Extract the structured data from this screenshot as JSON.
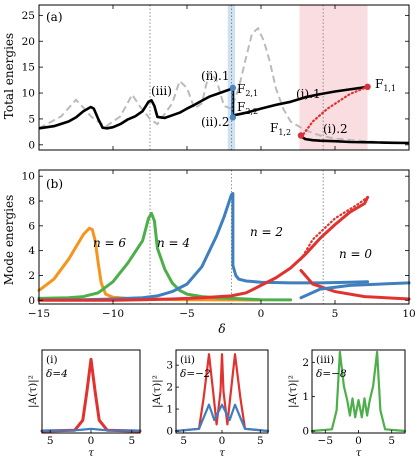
{
  "panel_a": {
    "tag": "(a)",
    "ylabel": "Total energies",
    "yticks": [
      "0",
      "5",
      "10",
      "15",
      "20",
      "25"
    ],
    "branch_labels": [
      {
        "id": "iii",
        "text": "(iii)"
      },
      {
        "id": "ii1",
        "text": "(ii).1"
      },
      {
        "id": "ii2",
        "text": "(ii).2"
      },
      {
        "id": "i1",
        "text": "(i).1"
      },
      {
        "id": "i2",
        "text": "(i).2"
      }
    ],
    "point_labels": [
      {
        "id": "F21",
        "text": "F",
        "sub": "2,1",
        "color": "#4a86c0"
      },
      {
        "id": "F22",
        "text": "F",
        "sub": "2,2",
        "color": "#4a86c0"
      },
      {
        "id": "F11",
        "text": "F",
        "sub": "1,1",
        "color": "#d6323c"
      },
      {
        "id": "F12",
        "text": "F",
        "sub": "1,2",
        "color": "#d6323c"
      }
    ]
  },
  "panel_b": {
    "tag": "(b)",
    "ylabel": "Mode energies",
    "yticks": [
      "0",
      "2",
      "4",
      "6",
      "8",
      "10"
    ],
    "mode_labels": [
      {
        "id": "n6",
        "text": "n = 6"
      },
      {
        "id": "n4",
        "text": "n = 4"
      },
      {
        "id": "n2",
        "text": "n = 2"
      },
      {
        "id": "n0",
        "text": "n = 0"
      }
    ]
  },
  "shared_x": {
    "xlabel": "δ",
    "xticks": [
      "−15",
      "−10",
      "−5",
      "0",
      "5",
      "10"
    ]
  },
  "insets": [
    {
      "tag": "(i)",
      "param": "δ=4",
      "ylabel": "|A(τ)|²",
      "xlabel": "τ",
      "xticks": [
        "5",
        "0",
        "5"
      ],
      "yticks": []
    },
    {
      "tag": "(ii)",
      "param": "δ=−2",
      "ylabel": "|A(τ)|²",
      "xlabel": "τ",
      "xticks": [
        "5",
        "0",
        "5"
      ],
      "yticks": [
        "0",
        "1",
        "2",
        "3"
      ]
    },
    {
      "tag": "(iii)",
      "param": "δ=−8",
      "ylabel": "|A(τ)|²",
      "xlabel": "τ",
      "xticks": [
        "−5",
        "0",
        "5"
      ],
      "yticks": [
        "0",
        "1",
        "2"
      ]
    }
  ],
  "colors": {
    "orange": "#f7941d",
    "green": "#4daf4a",
    "blue": "#3f7fbf",
    "red": "#e0322f",
    "gray": "#bbbbbb",
    "black": "#000000",
    "shade": "#f9dde0",
    "blue_band": "#bcd6ec"
  },
  "chart_data": [
    {
      "type": "line",
      "panel": "a",
      "ylabel": "Total energies",
      "xlim": [
        -15,
        10
      ],
      "ylim": [
        -1,
        27
      ],
      "shaded_interval_delta": [
        2.6,
        7.2
      ],
      "vertical_lines_delta": [
        -7.5,
        -2,
        4.2
      ],
      "series": [
        {
          "style": "dashed-gray",
          "x": [
            -15,
            -13.5,
            -12.5,
            -12,
            -11.5,
            -10.5,
            -9.5,
            -8.7,
            -8.2,
            -7.5,
            -7,
            -6,
            -5.5,
            -5,
            -4.5,
            -4,
            -3.5,
            -3,
            -2.5,
            -2,
            -1.5,
            -1,
            -0.6,
            -0.2,
            0.2,
            0.6,
            1,
            1.5,
            2,
            3,
            4,
            5,
            7,
            8,
            10
          ],
          "y": [
            3.2,
            5.5,
            8.7,
            7.2,
            5.5,
            3.5,
            5.5,
            9.7,
            7.5,
            5,
            4,
            8,
            12.3,
            11,
            7,
            8,
            14,
            12.5,
            7.5,
            7,
            11,
            17,
            21.5,
            22.5,
            20,
            16,
            11,
            7,
            4.5,
            2.8,
            1.8,
            1.2,
            0.7,
            0.5,
            0.4
          ]
        },
        {
          "style": "solid-black",
          "x": [
            -15,
            -14,
            -13,
            -12.5,
            -12,
            -11.5,
            -11.3,
            -11,
            -10.7,
            -10.4,
            -10,
            -9.5,
            -9,
            -8.5,
            -8,
            -7.6,
            -7.4,
            -7.2,
            -7,
            -6.5,
            -6,
            -5.5,
            -5,
            -4.5,
            -4,
            -3.5,
            -3,
            -2.5,
            -2,
            -1.9,
            -1.9,
            -1.7,
            -1.5,
            -1,
            0,
            1,
            2,
            3,
            4,
            5,
            6,
            7,
            7.2
          ],
          "y": [
            3.2,
            3.6,
            4.5,
            5.3,
            6.5,
            7.3,
            7,
            5,
            3.3,
            3.2,
            3.4,
            4,
            4.9,
            5.5,
            6.5,
            8.3,
            8.6,
            7.5,
            5.4,
            5.2,
            5.7,
            6.2,
            7,
            7.7,
            8.5,
            9.3,
            9.8,
            10.3,
            10.8,
            11,
            5.5,
            5.8,
            5.9,
            6.2,
            7,
            7.7,
            8.3,
            9.2,
            9.8,
            10.3,
            10.7,
            11.1,
            11.2
          ]
        },
        {
          "style": "dotted-black",
          "x": [
            7.2,
            6,
            4.5,
            3.5,
            2.8
          ],
          "y": [
            11.2,
            9.8,
            7,
            4.5,
            1.8
          ]
        },
        {
          "style": "solid-black",
          "x": [
            2.7,
            3,
            3.5,
            4,
            5,
            6,
            7,
            8,
            9,
            10
          ],
          "y": [
            1.6,
            1.1,
            0.9,
            0.8,
            0.7,
            0.55,
            0.5,
            0.45,
            0.4,
            0.35
          ]
        },
        {
          "style": "dotted-black",
          "x": [
            -1.95,
            -1.95,
            -1.95
          ],
          "y": [
            5.3,
            7,
            10.9
          ]
        }
      ],
      "points": [
        {
          "label": "F2,1",
          "x": -1.9,
          "y": 11.0,
          "color": "#4a86c0"
        },
        {
          "label": "F2,2",
          "x": -1.9,
          "y": 5.3,
          "color": "#4a86c0"
        },
        {
          "label": "F1,1",
          "x": 7.2,
          "y": 11.2,
          "color": "#d6323c"
        },
        {
          "label": "F1,2",
          "x": 2.7,
          "y": 1.8,
          "color": "#d6323c"
        }
      ]
    },
    {
      "type": "line",
      "panel": "b",
      "ylabel": "Mode energies",
      "xlim": [
        -15,
        10
      ],
      "ylim": [
        -0.3,
        10.5
      ],
      "series": [
        {
          "name": "n = 6",
          "color": "#f7941d",
          "x": [
            -15,
            -14,
            -13,
            -12.5,
            -12,
            -11.6,
            -11.4,
            -11.2,
            -11,
            -10.8,
            -10.5,
            -10,
            -9,
            -8,
            -7,
            -5,
            -2,
            0
          ],
          "y": [
            0.8,
            1.7,
            3.3,
            4.3,
            5.3,
            5.8,
            5.7,
            4.8,
            3,
            1.4,
            0.5,
            0.25,
            0.15,
            0.1,
            0.08,
            0.05,
            0.03,
            0.02
          ]
        },
        {
          "name": "n = 4",
          "color": "#4daf4a",
          "x": [
            -15,
            -13,
            -12,
            -11,
            -10,
            -9,
            -8,
            -7.6,
            -7.4,
            -7.2,
            -7,
            -6.5,
            -6,
            -5.5,
            -5,
            -4,
            -3,
            -2,
            0,
            2
          ],
          "y": [
            0.15,
            0.2,
            0.3,
            0.6,
            1.5,
            3,
            4.8,
            6.6,
            7,
            6.4,
            4.2,
            2.5,
            1.4,
            0.8,
            0.5,
            0.3,
            0.2,
            0.15,
            0.05,
            0.03
          ]
        },
        {
          "name": "n = 2",
          "color": "#3f7fbf",
          "x": [
            -15,
            -12,
            -10,
            -8,
            -7,
            -6,
            -5,
            -4,
            -3,
            -2.5,
            -2,
            -1.9,
            -1.9,
            -1.7,
            -1.5,
            -1,
            0,
            2,
            4,
            6,
            7.2
          ],
          "y": [
            0.02,
            0.05,
            0.1,
            0.2,
            0.35,
            0.7,
            1.3,
            2.7,
            5.2,
            6.7,
            8.5,
            8.6,
            2.8,
            2,
            1.7,
            1.55,
            1.45,
            1.4,
            1.4,
            1.45,
            1.5
          ]
        },
        {
          "name": "n = 0",
          "color": "#e0322f",
          "x": [
            -15,
            -10,
            -8,
            -6,
            -4,
            -2,
            -1,
            0,
            1,
            2,
            3,
            4,
            5,
            6,
            7,
            7.2
          ],
          "y": [
            0,
            0,
            0.05,
            0.1,
            0.2,
            0.35,
            0.6,
            1.2,
            1.8,
            2.6,
            3.7,
            5,
            6.1,
            7.1,
            7.8,
            8.3
          ]
        }
      ]
    },
    {
      "type": "line",
      "panel": "inset-i",
      "param": "δ=4",
      "xlim": [
        -6,
        6
      ],
      "series": [
        {
          "color": "#e0322f",
          "x": [
            -6,
            -2,
            -1,
            -0.5,
            0,
            0.5,
            1,
            2,
            6
          ],
          "y": [
            0,
            0.1,
            1.5,
            5.5,
            10,
            5.5,
            1.5,
            0.1,
            0
          ]
        },
        {
          "color": "#3f7fbf",
          "x": [
            -6,
            -2,
            -1,
            0,
            1,
            2,
            6
          ],
          "y": [
            0.05,
            0.1,
            0.2,
            0.3,
            0.2,
            0.1,
            0.05
          ]
        }
      ]
    },
    {
      "type": "line",
      "panel": "inset-ii",
      "param": "δ=−2",
      "xlim": [
        -6,
        6
      ],
      "ylim": [
        0,
        3.6
      ],
      "series": [
        {
          "color": "#e0322f",
          "x": [
            -6,
            -3,
            -2.4,
            -1.7,
            -1.1,
            -0.7,
            -0.2,
            0,
            0.2,
            0.7,
            1.1,
            1.7,
            2.4,
            3,
            6
          ],
          "y": [
            0,
            0.1,
            1.5,
            3.5,
            1.6,
            0.3,
            1.8,
            3.5,
            1.8,
            0.3,
            1.6,
            3.5,
            1.5,
            0.1,
            0
          ]
        },
        {
          "color": "#3f7fbf",
          "x": [
            -6,
            -3,
            -1.7,
            -1,
            0,
            1,
            1.7,
            3,
            6
          ],
          "y": [
            0,
            0.1,
            1.2,
            0.5,
            1.2,
            0.5,
            1.2,
            0.1,
            0
          ]
        }
      ]
    },
    {
      "type": "line",
      "panel": "inset-iii",
      "param": "δ=−8",
      "xlim": [
        -7,
        7
      ],
      "ylim": [
        0,
        2.3
      ],
      "series": [
        {
          "color": "#4daf4a",
          "x": [
            -7,
            -4,
            -3.3,
            -2.8,
            -2.2,
            -1.7,
            -1.3,
            -0.9,
            -0.5,
            0,
            0.5,
            0.9,
            1.3,
            1.7,
            2.2,
            2.8,
            3.3,
            4,
            7
          ],
          "y": [
            0,
            0.05,
            0.6,
            2.3,
            1.3,
            0.9,
            0.45,
            0.95,
            0.4,
            0.9,
            0.4,
            0.95,
            0.45,
            0.9,
            1.3,
            2.3,
            0.6,
            0.05,
            0
          ]
        }
      ]
    }
  ]
}
